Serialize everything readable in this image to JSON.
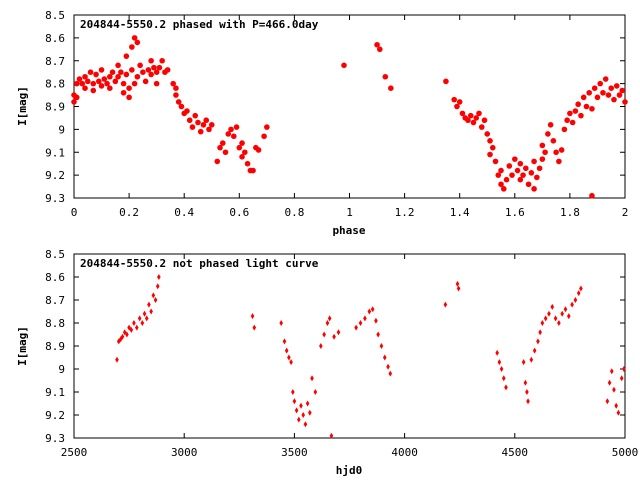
{
  "colors": {
    "points": "#ff0000",
    "frame": "#000000",
    "background": "#ffffff"
  },
  "chart_data": [
    {
      "type": "scatter",
      "title": "204844-5550.2 phased with P=466.0day",
      "xlabel": "phase",
      "ylabel": "I[mag]",
      "xlim": [
        0,
        2
      ],
      "ylim": [
        9.3,
        8.5
      ],
      "y_inverted": true,
      "grid": false,
      "x_ticks": [
        0,
        0.2,
        0.4,
        0.6,
        0.8,
        1,
        1.2,
        1.4,
        1.6,
        1.8,
        2
      ],
      "x_tick_labels": [
        "0",
        "0.2",
        "0.4",
        "0.6",
        "0.8",
        "1",
        "1.2",
        "1.4",
        "1.6",
        "1.8",
        "2"
      ],
      "y_ticks": [
        8.5,
        8.6,
        8.7,
        8.8,
        8.9,
        9.0,
        9.1,
        9.2,
        9.3
      ],
      "y_tick_labels": [
        "8.5",
        "8.6",
        "8.7",
        "8.8",
        "8.9",
        "9",
        "9.1",
        "9.2",
        "9.3"
      ],
      "marker": "filled-circle",
      "points": [
        [
          0.0,
          8.88
        ],
        [
          0.0,
          8.85
        ],
        [
          0.01,
          8.8
        ],
        [
          0.01,
          8.86
        ],
        [
          0.02,
          8.78
        ],
        [
          0.03,
          8.8
        ],
        [
          0.04,
          8.82
        ],
        [
          0.04,
          8.77
        ],
        [
          0.05,
          8.79
        ],
        [
          0.06,
          8.75
        ],
        [
          0.07,
          8.8
        ],
        [
          0.07,
          8.83
        ],
        [
          0.08,
          8.76
        ],
        [
          0.09,
          8.79
        ],
        [
          0.1,
          8.81
        ],
        [
          0.1,
          8.74
        ],
        [
          0.11,
          8.78
        ],
        [
          0.12,
          8.8
        ],
        [
          0.13,
          8.77
        ],
        [
          0.13,
          8.82
        ],
        [
          0.14,
          8.75
        ],
        [
          0.15,
          8.79
        ],
        [
          0.16,
          8.72
        ],
        [
          0.16,
          8.77
        ],
        [
          0.17,
          8.75
        ],
        [
          0.18,
          8.8
        ],
        [
          0.18,
          8.84
        ],
        [
          0.19,
          8.76
        ],
        [
          0.19,
          8.68
        ],
        [
          0.2,
          8.82
        ],
        [
          0.2,
          8.86
        ],
        [
          0.21,
          8.64
        ],
        [
          0.21,
          8.74
        ],
        [
          0.22,
          8.6
        ],
        [
          0.22,
          8.8
        ],
        [
          0.23,
          8.62
        ],
        [
          0.23,
          8.77
        ],
        [
          0.24,
          8.72
        ],
        [
          0.25,
          8.75
        ],
        [
          0.26,
          8.79
        ],
        [
          0.27,
          8.74
        ],
        [
          0.28,
          8.7
        ],
        [
          0.28,
          8.76
        ],
        [
          0.29,
          8.73
        ],
        [
          0.3,
          8.8
        ],
        [
          0.3,
          8.75
        ],
        [
          0.31,
          8.73
        ],
        [
          0.32,
          8.7
        ],
        [
          0.33,
          8.75
        ],
        [
          0.34,
          8.74
        ],
        [
          0.36,
          8.8
        ],
        [
          0.37,
          8.82
        ],
        [
          0.37,
          8.85
        ],
        [
          0.38,
          8.88
        ],
        [
          0.39,
          8.9
        ],
        [
          0.4,
          8.93
        ],
        [
          0.41,
          8.92
        ],
        [
          0.42,
          8.96
        ],
        [
          0.43,
          8.99
        ],
        [
          0.44,
          8.94
        ],
        [
          0.45,
          8.97
        ],
        [
          0.46,
          9.01
        ],
        [
          0.47,
          8.98
        ],
        [
          0.48,
          8.96
        ],
        [
          0.49,
          9.0
        ],
        [
          0.5,
          8.98
        ],
        [
          0.52,
          9.14
        ],
        [
          0.53,
          9.08
        ],
        [
          0.54,
          9.06
        ],
        [
          0.55,
          9.1
        ],
        [
          0.56,
          9.02
        ],
        [
          0.57,
          9.0
        ],
        [
          0.58,
          9.03
        ],
        [
          0.59,
          8.99
        ],
        [
          0.6,
          9.08
        ],
        [
          0.61,
          9.12
        ],
        [
          0.61,
          9.06
        ],
        [
          0.62,
          9.1
        ],
        [
          0.63,
          9.15
        ],
        [
          0.64,
          9.18
        ],
        [
          0.65,
          9.18
        ],
        [
          0.66,
          9.08
        ],
        [
          0.67,
          9.09
        ],
        [
          0.69,
          9.03
        ],
        [
          0.7,
          8.99
        ],
        [
          0.98,
          8.72
        ],
        [
          1.1,
          8.63
        ],
        [
          1.11,
          8.65
        ],
        [
          1.13,
          8.77
        ],
        [
          1.15,
          8.82
        ],
        [
          1.35,
          8.79
        ],
        [
          1.38,
          8.87
        ],
        [
          1.39,
          8.9
        ],
        [
          1.4,
          8.88
        ],
        [
          1.41,
          8.93
        ],
        [
          1.42,
          8.95
        ],
        [
          1.43,
          8.96
        ],
        [
          1.44,
          8.94
        ],
        [
          1.45,
          8.97
        ],
        [
          1.46,
          8.95
        ],
        [
          1.47,
          8.93
        ],
        [
          1.48,
          8.99
        ],
        [
          1.49,
          8.96
        ],
        [
          1.5,
          9.02
        ],
        [
          1.51,
          9.05
        ],
        [
          1.51,
          9.11
        ],
        [
          1.52,
          9.08
        ],
        [
          1.53,
          9.14
        ],
        [
          1.54,
          9.2
        ],
        [
          1.55,
          9.24
        ],
        [
          1.55,
          9.18
        ],
        [
          1.56,
          9.26
        ],
        [
          1.57,
          9.22
        ],
        [
          1.58,
          9.16
        ],
        [
          1.59,
          9.2
        ],
        [
          1.6,
          9.13
        ],
        [
          1.61,
          9.18
        ],
        [
          1.62,
          9.22
        ],
        [
          1.62,
          9.15
        ],
        [
          1.63,
          9.2
        ],
        [
          1.64,
          9.17
        ],
        [
          1.65,
          9.24
        ],
        [
          1.66,
          9.19
        ],
        [
          1.67,
          9.26
        ],
        [
          1.67,
          9.14
        ],
        [
          1.68,
          9.21
        ],
        [
          1.69,
          9.17
        ],
        [
          1.7,
          9.13
        ],
        [
          1.7,
          9.07
        ],
        [
          1.71,
          9.1
        ],
        [
          1.72,
          9.02
        ],
        [
          1.73,
          8.98
        ],
        [
          1.74,
          9.05
        ],
        [
          1.75,
          9.1
        ],
        [
          1.76,
          9.14
        ],
        [
          1.77,
          9.09
        ],
        [
          1.78,
          9.0
        ],
        [
          1.79,
          8.96
        ],
        [
          1.8,
          8.93
        ],
        [
          1.81,
          8.97
        ],
        [
          1.82,
          8.92
        ],
        [
          1.83,
          8.89
        ],
        [
          1.84,
          8.94
        ],
        [
          1.85,
          8.86
        ],
        [
          1.86,
          8.9
        ],
        [
          1.87,
          8.84
        ],
        [
          1.88,
          9.29
        ],
        [
          1.88,
          8.91
        ],
        [
          1.89,
          8.82
        ],
        [
          1.9,
          8.86
        ],
        [
          1.91,
          8.8
        ],
        [
          1.92,
          8.84
        ],
        [
          1.93,
          8.78
        ],
        [
          1.94,
          8.85
        ],
        [
          1.95,
          8.82
        ],
        [
          1.96,
          8.87
        ],
        [
          1.97,
          8.81
        ],
        [
          1.98,
          8.85
        ],
        [
          1.99,
          8.83
        ],
        [
          2.0,
          8.88
        ]
      ]
    },
    {
      "type": "scatter",
      "title": "204844-5550.2 not phased light curve",
      "xlabel": "hjd0",
      "ylabel": "I[mag]",
      "xlim": [
        2500,
        5000
      ],
      "ylim": [
        9.3,
        8.5
      ],
      "y_inverted": true,
      "grid": false,
      "x_ticks": [
        2500,
        3000,
        3500,
        4000,
        4500,
        5000
      ],
      "x_tick_labels": [
        "2500",
        "3000",
        "3500",
        "4000",
        "4500",
        "5000"
      ],
      "y_ticks": [
        8.5,
        8.6,
        8.7,
        8.8,
        8.9,
        9.0,
        9.1,
        9.2,
        9.3
      ],
      "y_tick_labels": [
        "8.5",
        "8.6",
        "8.7",
        "8.8",
        "8.9",
        "9",
        "9.1",
        "9.2",
        "9.3"
      ],
      "marker": "filled-diamond",
      "points": [
        [
          2695,
          8.96
        ],
        [
          2703,
          8.88
        ],
        [
          2712,
          8.87
        ],
        [
          2720,
          8.86
        ],
        [
          2730,
          8.84
        ],
        [
          2740,
          8.85
        ],
        [
          2750,
          8.82
        ],
        [
          2760,
          8.83
        ],
        [
          2772,
          8.8
        ],
        [
          2785,
          8.82
        ],
        [
          2798,
          8.78
        ],
        [
          2810,
          8.8
        ],
        [
          2820,
          8.76
        ],
        [
          2830,
          8.78
        ],
        [
          2840,
          8.72
        ],
        [
          2850,
          8.75
        ],
        [
          2860,
          8.68
        ],
        [
          2870,
          8.7
        ],
        [
          2880,
          8.64
        ],
        [
          2885,
          8.6
        ],
        [
          3310,
          8.77
        ],
        [
          3318,
          8.82
        ],
        [
          3440,
          8.8
        ],
        [
          3455,
          8.88
        ],
        [
          3465,
          8.92
        ],
        [
          3475,
          8.95
        ],
        [
          3485,
          8.97
        ],
        [
          3493,
          9.1
        ],
        [
          3500,
          9.14
        ],
        [
          3510,
          9.18
        ],
        [
          3520,
          9.22
        ],
        [
          3530,
          9.16
        ],
        [
          3540,
          9.2
        ],
        [
          3550,
          9.24
        ],
        [
          3560,
          9.15
        ],
        [
          3570,
          9.19
        ],
        [
          3580,
          9.04
        ],
        [
          3595,
          9.1
        ],
        [
          3620,
          8.9
        ],
        [
          3635,
          8.85
        ],
        [
          3650,
          8.8
        ],
        [
          3660,
          8.78
        ],
        [
          3668,
          9.29
        ],
        [
          3680,
          8.86
        ],
        [
          3700,
          8.84
        ],
        [
          3780,
          8.82
        ],
        [
          3800,
          8.8
        ],
        [
          3820,
          8.78
        ],
        [
          3840,
          8.75
        ],
        [
          3855,
          8.74
        ],
        [
          3870,
          8.79
        ],
        [
          3880,
          8.85
        ],
        [
          3895,
          8.9
        ],
        [
          3910,
          8.95
        ],
        [
          3925,
          8.99
        ],
        [
          3935,
          9.02
        ],
        [
          4185,
          8.72
        ],
        [
          4240,
          8.63
        ],
        [
          4245,
          8.65
        ],
        [
          4420,
          8.93
        ],
        [
          4430,
          8.97
        ],
        [
          4440,
          9.0
        ],
        [
          4450,
          9.04
        ],
        [
          4460,
          9.08
        ],
        [
          4540,
          8.97
        ],
        [
          4548,
          9.06
        ],
        [
          4555,
          9.1
        ],
        [
          4560,
          9.14
        ],
        [
          4575,
          8.96
        ],
        [
          4590,
          8.92
        ],
        [
          4605,
          8.88
        ],
        [
          4615,
          8.84
        ],
        [
          4625,
          8.8
        ],
        [
          4640,
          8.78
        ],
        [
          4655,
          8.76
        ],
        [
          4670,
          8.73
        ],
        [
          4685,
          8.78
        ],
        [
          4700,
          8.8
        ],
        [
          4715,
          8.76
        ],
        [
          4730,
          8.74
        ],
        [
          4745,
          8.77
        ],
        [
          4760,
          8.72
        ],
        [
          4775,
          8.7
        ],
        [
          4790,
          8.67
        ],
        [
          4800,
          8.65
        ],
        [
          4920,
          9.14
        ],
        [
          4930,
          9.06
        ],
        [
          4940,
          9.01
        ],
        [
          4950,
          9.09
        ],
        [
          4960,
          9.16
        ],
        [
          4970,
          9.19
        ],
        [
          4985,
          9.04
        ],
        [
          4995,
          9.0
        ]
      ]
    }
  ]
}
